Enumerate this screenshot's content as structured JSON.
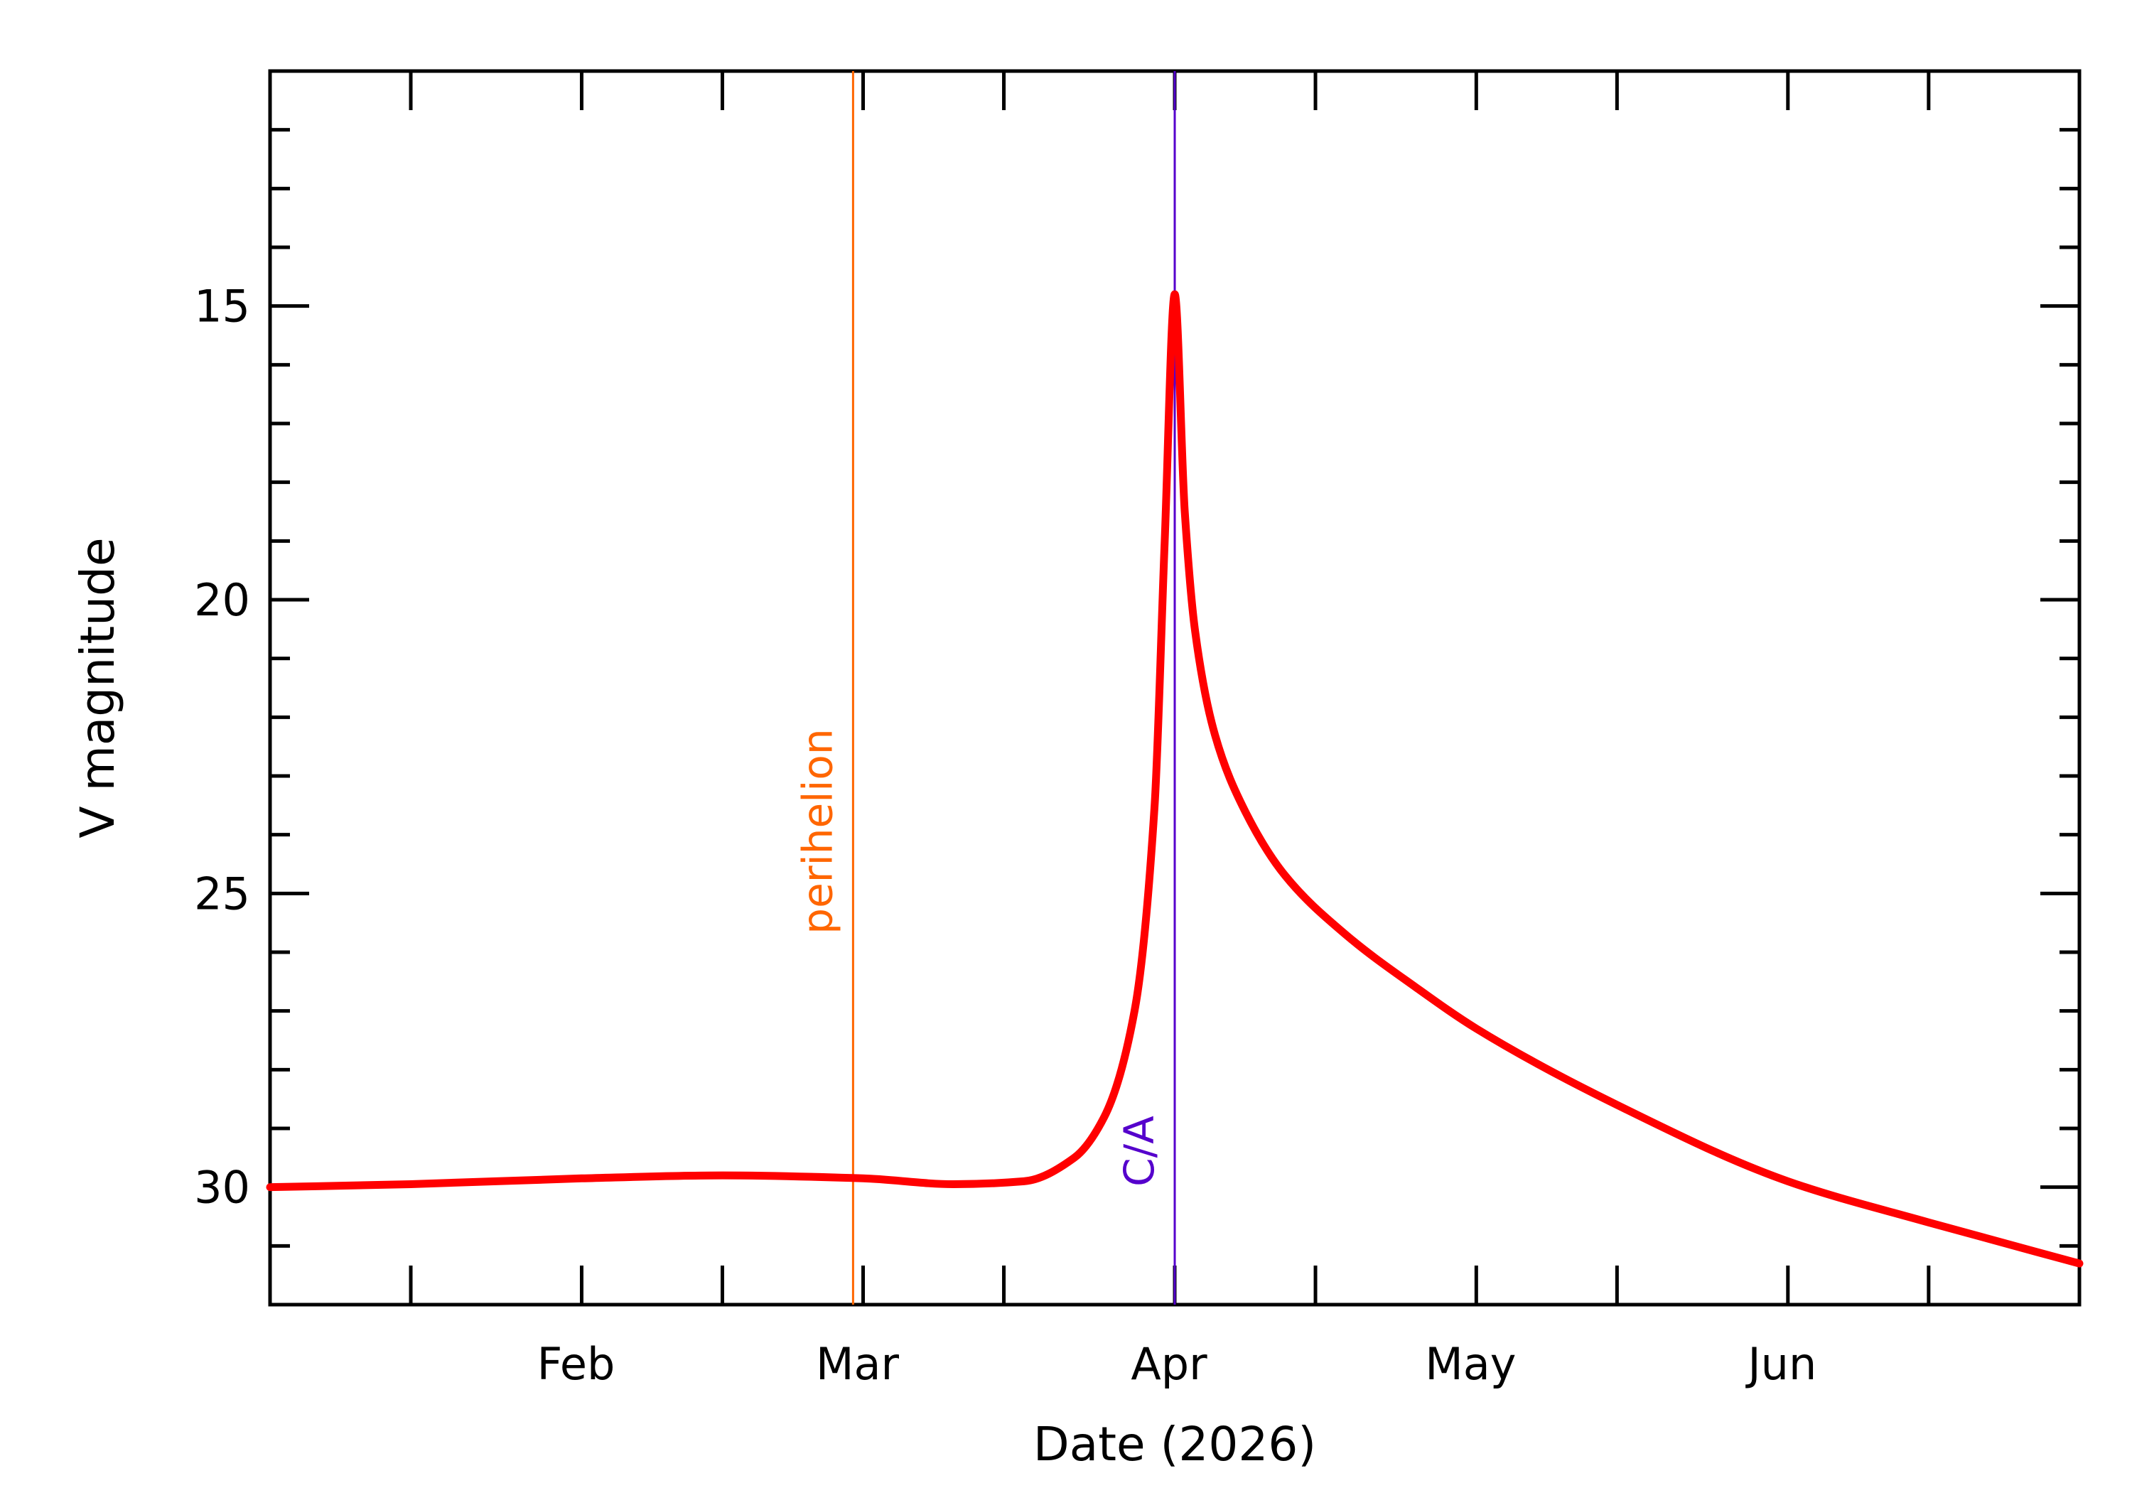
{
  "chart_data": {
    "type": "line",
    "xlabel": "Date (2026)",
    "ylabel": "V magnitude",
    "x_tick_labels": [
      "Feb",
      "Mar",
      "Apr",
      "May",
      "Jun"
    ],
    "x_tick_dates": [
      "2026-02-01",
      "2026-03-01",
      "2026-04-01",
      "2026-05-01",
      "2026-06-01"
    ],
    "x_minor_tick_dates": [
      "2026-01-15",
      "2026-02-15",
      "2026-03-15",
      "2026-04-15",
      "2026-05-15",
      "2026-06-15"
    ],
    "xlim": [
      "2026-01-01",
      "2026-06-30"
    ],
    "y_tick_labels": [
      "15",
      "20",
      "25",
      "30"
    ],
    "y_tick_values": [
      15,
      20,
      25,
      30
    ],
    "ylim": [
      32,
      11
    ],
    "y_inverted": true,
    "grid": false,
    "colors": {
      "curve": "#ff0000",
      "perihelion": "#ff6600",
      "closest_approach": "#5500cc",
      "axes": "#000000"
    },
    "series": [
      {
        "dates": [
          "2026-01-01",
          "2026-01-15",
          "2026-02-01",
          "2026-02-15",
          "2026-03-01",
          "2026-03-10",
          "2026-03-17",
          "2026-03-22",
          "2026-03-25",
          "2026-03-28",
          "2026-03-30",
          "2026-03-31",
          "2026-04-01",
          "2026-04-02",
          "2026-04-03",
          "2026-04-05",
          "2026-04-08",
          "2026-04-12",
          "2026-04-18",
          "2026-04-25",
          "2026-05-01",
          "2026-05-15",
          "2026-06-01",
          "2026-06-15",
          "2026-06-30"
        ],
        "values": [
          30.0,
          29.95,
          29.85,
          29.8,
          29.85,
          29.95,
          29.9,
          29.5,
          28.8,
          27.0,
          23.5,
          19.0,
          14.8,
          18.5,
          20.5,
          22.3,
          23.6,
          24.7,
          25.7,
          26.6,
          27.3,
          28.6,
          29.9,
          30.6,
          31.3
        ]
      }
    ],
    "markers": [
      {
        "label": "perihelion",
        "date": "2026-02-28"
      },
      {
        "label": "C/A",
        "date": "2026-04-01"
      }
    ]
  }
}
